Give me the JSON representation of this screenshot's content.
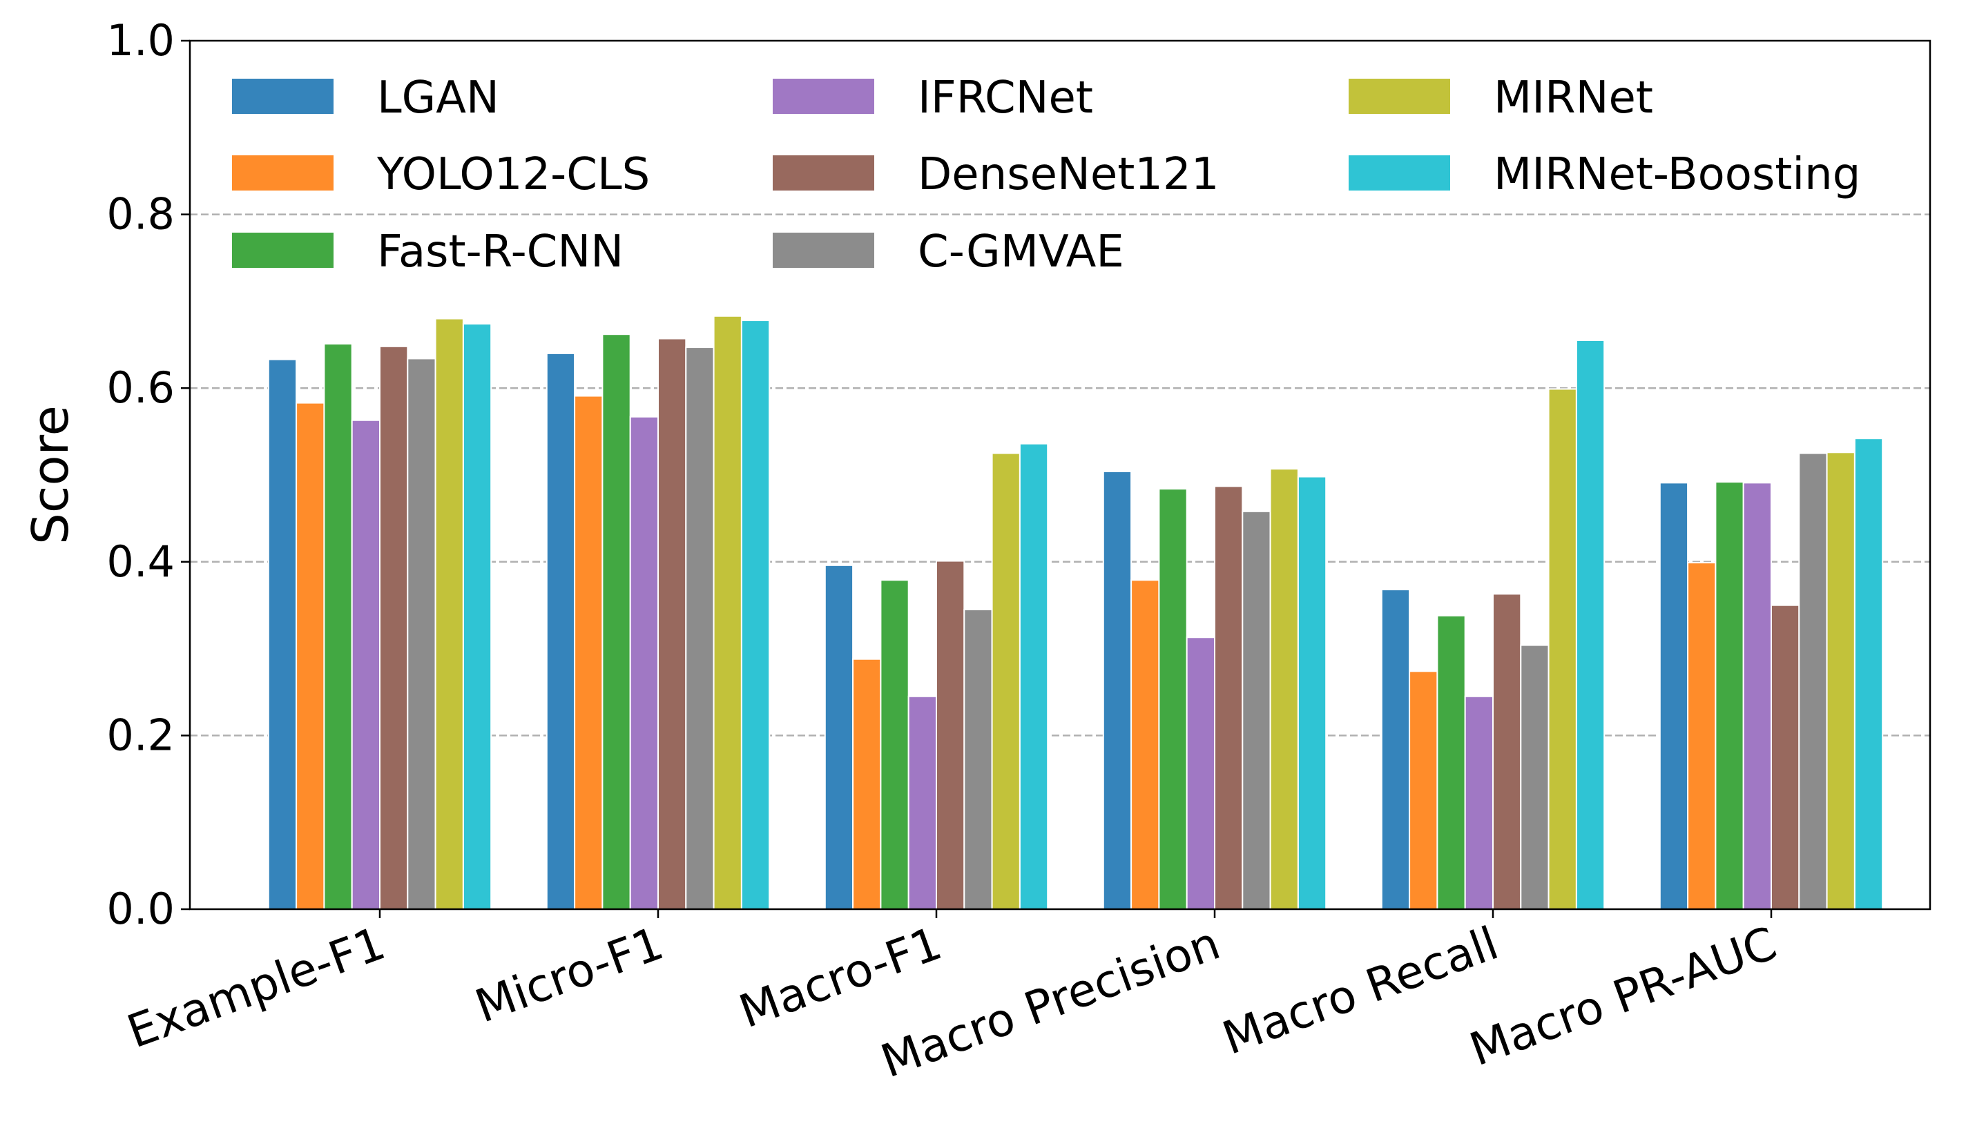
{
  "chart_data": {
    "type": "bar",
    "title": "",
    "xlabel": "",
    "ylabel": "Score",
    "ylim": [
      0,
      1.0
    ],
    "yticks": [
      "0.0",
      "0.2",
      "0.4",
      "0.6",
      "0.8",
      "1.0"
    ],
    "grid": "y dashed",
    "legend_placement": "top-left, 3 columns",
    "categories": [
      "Example-F1",
      "Micro-F1",
      "Macro-F1",
      "Macro Precision",
      "Macro Recall",
      "Macro PR-AUC"
    ],
    "series": [
      {
        "name": "LGAN",
        "color": "#3584bb",
        "values": [
          0.633,
          0.64,
          0.396,
          0.504,
          0.368,
          0.491
        ]
      },
      {
        "name": "YOLO12-CLS",
        "color": "#ff8c2a",
        "values": [
          0.583,
          0.591,
          0.288,
          0.379,
          0.274,
          0.399
        ]
      },
      {
        "name": "Fast-R-CNN",
        "color": "#42a842",
        "values": [
          0.651,
          0.662,
          0.379,
          0.484,
          0.338,
          0.492
        ]
      },
      {
        "name": "IFRCNet",
        "color": "#a078c4",
        "values": [
          0.563,
          0.567,
          0.245,
          0.313,
          0.245,
          0.491
        ]
      },
      {
        "name": "DenseNet121",
        "color": "#98695e",
        "values": [
          0.648,
          0.657,
          0.401,
          0.487,
          0.363,
          0.35
        ]
      },
      {
        "name": "C-GMVAE",
        "color": "#8c8c8c",
        "values": [
          0.634,
          0.647,
          0.345,
          0.458,
          0.304,
          0.525
        ]
      },
      {
        "name": "MIRNet",
        "color": "#c2c23a",
        "values": [
          0.68,
          0.683,
          0.525,
          0.507,
          0.599,
          0.526
        ]
      },
      {
        "name": "MIRNet-Boosting",
        "color": "#2fc4d4",
        "values": [
          0.674,
          0.678,
          0.536,
          0.498,
          0.655,
          0.542
        ]
      }
    ]
  }
}
